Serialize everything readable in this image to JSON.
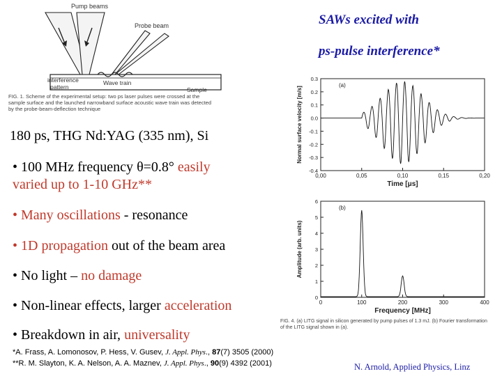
{
  "title": {
    "line1": "SAWs excited with",
    "line2": "ps-pulse interference*"
  },
  "schematic": {
    "pump_label": "Pump beams",
    "probe_label": "Probe beam",
    "interference_label_1": "interference",
    "interference_label_2": "pattern",
    "wave_label": "Wave train",
    "sample_label": "Sample",
    "caption": "FIG. 1. Scheme of the experimental setup: two ps laser pulses were crossed at the sample surface and the launched narrowband surface acoustic wave train was detected by the probe-beam-deflection technique"
  },
  "params_line": "180 ps, THG Nd:YAG (335 nm), Si",
  "bullets": [
    {
      "prefix": "• 100 MHz frequency  ",
      "theta": "θ=0.8°",
      "highlight": " easily",
      "line2": "varied up to 1-10 GHz**"
    },
    {
      "highlight": "• Many oscillations",
      "rest": " - resonance"
    },
    {
      "highlight": "• 1D propagation",
      "rest": " out of the beam area"
    },
    {
      "prefix": "• No light – ",
      "highlight": "no damage"
    },
    {
      "prefix": "• Non-linear effects, larger ",
      "highlight": "acceleration"
    },
    {
      "prefix": "• Breakdown in air, ",
      "highlight": "universality"
    }
  ],
  "references": {
    "ref1_prefix": "*A. Frass, A. Lomonosov, P. Hess, V. Gusev, ",
    "ref1_journal": "J. Appl. Phys",
    "ref1_mid": "., ",
    "ref1_vol": "87",
    "ref1_end": "(7) 3505 (2000)",
    "ref2_prefix": "**R. M. Slayton, K. A. Nelson, A. A. Maznev, ",
    "ref2_journal": "J. Appl. Phys",
    "ref2_mid": "., ",
    "ref2_vol": "90",
    "ref2_end": "(9) 4392 (2001)"
  },
  "footer": "N. Arnold, Applied Physics, Linz",
  "fig4_caption": "FIG. 4. (a) LITG signal in silicon generated by pump pulses of 1.3 mJ. (b) Fourier transformation of the LITG signal shown in (a).",
  "chart_data": [
    {
      "type": "line",
      "panel_label": "(a)",
      "xlabel": "Time [μs]",
      "ylabel": "Normal surface velocity [m/s]",
      "xlim": [
        0.0,
        0.2
      ],
      "ylim": [
        -0.4,
        0.3
      ],
      "x_ticks": [
        "0,00",
        "0,05",
        "0,10",
        "0,15",
        "0,20"
      ],
      "y_ticks": [
        "0.3",
        "0.2",
        "0.1",
        "0.0",
        "-0.1",
        "-0.2",
        "-0.3",
        "-0.4"
      ],
      "signal": {
        "center": 0.1,
        "width": 0.035,
        "amplitude": 0.28,
        "frequency_mhz": 100,
        "x_start": 0.05,
        "x_end": 0.19
      }
    },
    {
      "type": "line",
      "panel_label": "(b)",
      "xlabel": "Frequency [MHz]",
      "ylabel": "Amplitude (arb. units)",
      "xlim": [
        0,
        400
      ],
      "ylim": [
        0,
        6
      ],
      "x_ticks": [
        "0",
        "100",
        "200",
        "300",
        "400"
      ],
      "y_ticks": [
        "0",
        "1",
        "2",
        "3",
        "4",
        "5",
        "6"
      ],
      "peaks": [
        {
          "x": 100,
          "y": 5.4
        },
        {
          "x": 200,
          "y": 1.3
        }
      ]
    }
  ]
}
